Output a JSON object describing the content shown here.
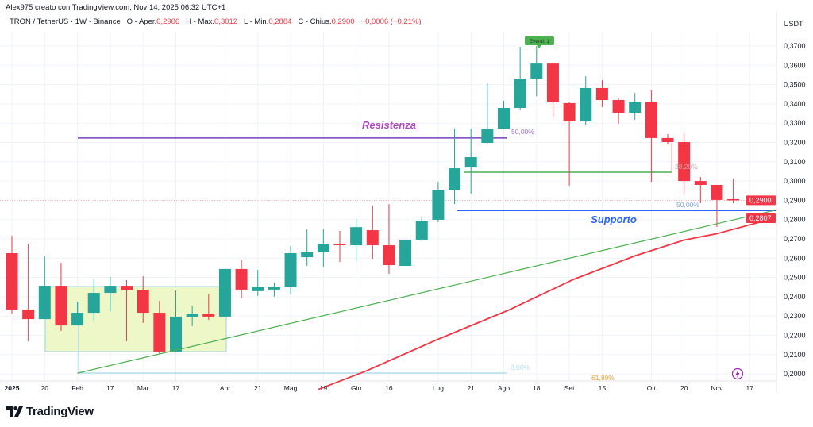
{
  "header": {
    "credit": "Alex975 creato con TradingView.com, Nov 14, 2025 06:32 UTC+1"
  },
  "legend": {
    "symbol": "TRON / TetherUS · 1W · Binance",
    "open_label": "O - Aper.",
    "open": "0,2906",
    "high_label": "H - Max.",
    "high": "0,3012",
    "low_label": "L - Min.",
    "low": "0,2884",
    "close_label": "C - Chius.",
    "close": "0,2900",
    "change": "−0,0006 (−0,21%)"
  },
  "price_axis": {
    "currency": "USDT",
    "ticks": [
      "0,3700",
      "0,3600",
      "0,3500",
      "0,3400",
      "0,3300",
      "0,3200",
      "0,3100",
      "0,3000",
      "0,2900",
      "0,2800",
      "0,2700",
      "0,2600",
      "0,2500",
      "0,2400",
      "0,2300",
      "0,2200",
      "0,2100",
      "0,2000"
    ],
    "tick_values": [
      0.37,
      0.36,
      0.35,
      0.34,
      0.33,
      0.32,
      0.31,
      0.3,
      0.29,
      0.28,
      0.27,
      0.26,
      0.25,
      0.24,
      0.23,
      0.22,
      0.21,
      0.2
    ],
    "last_price_label": "0,2900",
    "ma_price_label": "0,2807"
  },
  "time_axis": {
    "ticks": [
      "2025",
      "20",
      "Feb",
      "17",
      "Mar",
      "17",
      "Apr",
      "21",
      "Mag",
      "19",
      "Giu",
      "16",
      "Lug",
      "21",
      "Ago",
      "18",
      "Set",
      "15",
      "Ott",
      "20",
      "Nov",
      "17"
    ],
    "tick_bar_index": [
      0,
      2,
      4,
      6,
      8,
      10,
      13,
      15,
      17,
      19,
      21,
      23,
      26,
      28,
      30,
      32,
      34,
      36,
      39,
      41,
      43,
      45
    ]
  },
  "colors": {
    "up": "#26a69a",
    "down": "#f23645",
    "resistance": "#7b3fbf",
    "support": "#2962ff",
    "trend": "#4caf50",
    "ma": "#f23645",
    "fib_box": "#eef7c8"
  },
  "annotations": {
    "resistance_label": "Resistenza",
    "support_label": "Supporto",
    "resistance_level": 0.3223,
    "support_level": 0.2848,
    "fib_50_top": "50,00%",
    "fib_382": "38,20%",
    "fib_50_bottom": "50,00%",
    "fib_0": "0,00%",
    "fib_618": "61,80%",
    "events_badge": "Eventi: 1"
  },
  "chart_data": {
    "type": "candlestick",
    "timeframe": "1W",
    "ylim": [
      0.195,
      0.378
    ],
    "candles": [
      [
        0.2626,
        0.2716,
        0.2313,
        0.2334
      ],
      [
        0.2334,
        0.2675,
        0.2169,
        0.2284
      ],
      [
        0.2284,
        0.2609,
        0.2284,
        0.2457
      ],
      [
        0.2457,
        0.2576,
        0.2223,
        0.2251
      ],
      [
        0.2251,
        0.2375,
        0.2251,
        0.2317
      ],
      [
        0.2317,
        0.249,
        0.2276,
        0.242
      ],
      [
        0.242,
        0.2502,
        0.2325,
        0.2457
      ],
      [
        0.2457,
        0.2486,
        0.2169,
        0.2436
      ],
      [
        0.2436,
        0.2506,
        0.2264,
        0.2317
      ],
      [
        0.2317,
        0.2379,
        0.2103,
        0.2116
      ],
      [
        0.2116,
        0.2432,
        0.2112,
        0.2297
      ],
      [
        0.2297,
        0.2354,
        0.2247,
        0.2313
      ],
      [
        0.2313,
        0.2416,
        0.228,
        0.2297
      ],
      [
        0.2297,
        0.2544,
        0.2297,
        0.2544
      ],
      [
        0.2544,
        0.2593,
        0.2391,
        0.2437
      ],
      [
        0.2429,
        0.254,
        0.2404,
        0.2449
      ],
      [
        0.2437,
        0.2474,
        0.24,
        0.2449
      ],
      [
        0.2449,
        0.2663,
        0.2412,
        0.2626
      ],
      [
        0.2605,
        0.2749,
        0.256,
        0.263
      ],
      [
        0.263,
        0.2753,
        0.2556,
        0.2675
      ],
      [
        0.2675,
        0.2741,
        0.258,
        0.2667
      ],
      [
        0.2667,
        0.2803,
        0.2585,
        0.2761
      ],
      [
        0.2745,
        0.2872,
        0.2597,
        0.2667
      ],
      [
        0.2667,
        0.288,
        0.2519,
        0.2564
      ],
      [
        0.256,
        0.2696,
        0.256,
        0.2696
      ],
      [
        0.2696,
        0.2811,
        0.2688,
        0.2794
      ],
      [
        0.2799,
        0.2996,
        0.2786,
        0.2955
      ],
      [
        0.2955,
        0.3272,
        0.2881,
        0.3066
      ],
      [
        0.307,
        0.3272,
        0.2934,
        0.3124
      ],
      [
        0.3198,
        0.3506,
        0.319,
        0.3272
      ],
      [
        0.3272,
        0.3416,
        0.3272,
        0.3379
      ],
      [
        0.3379,
        0.3696,
        0.337,
        0.3531
      ],
      [
        0.3531,
        0.37,
        0.344,
        0.3609
      ],
      [
        0.3609,
        0.3609,
        0.333,
        0.3408
      ],
      [
        0.3404,
        0.3412,
        0.2976,
        0.3309
      ],
      [
        0.3309,
        0.3543,
        0.3292,
        0.3482
      ],
      [
        0.3482,
        0.3523,
        0.3383,
        0.342
      ],
      [
        0.342,
        0.3428,
        0.3297,
        0.3354
      ],
      [
        0.3354,
        0.3457,
        0.3317,
        0.3408
      ],
      [
        0.3412,
        0.347,
        0.2996,
        0.3223
      ],
      [
        0.3223,
        0.3243,
        0.319,
        0.3202
      ],
      [
        0.3202,
        0.3251,
        0.2935,
        0.3
      ],
      [
        0.3,
        0.3021,
        0.2885,
        0.298
      ],
      [
        0.298,
        0.298,
        0.2762,
        0.2902
      ],
      [
        0.2906,
        0.3012,
        0.2884,
        0.29
      ]
    ],
    "moving_average": [
      [
        18.7,
        0.192
      ],
      [
        21.6,
        0.2015
      ],
      [
        26,
        0.218
      ],
      [
        30.3,
        0.2331
      ],
      [
        34.2,
        0.2488
      ],
      [
        38,
        0.2612
      ],
      [
        41,
        0.2694
      ],
      [
        43,
        0.2727
      ],
      [
        46.5,
        0.2807
      ]
    ],
    "trendline": [
      [
        4,
        0.2004
      ],
      [
        46.5,
        0.2848
      ]
    ]
  }
}
